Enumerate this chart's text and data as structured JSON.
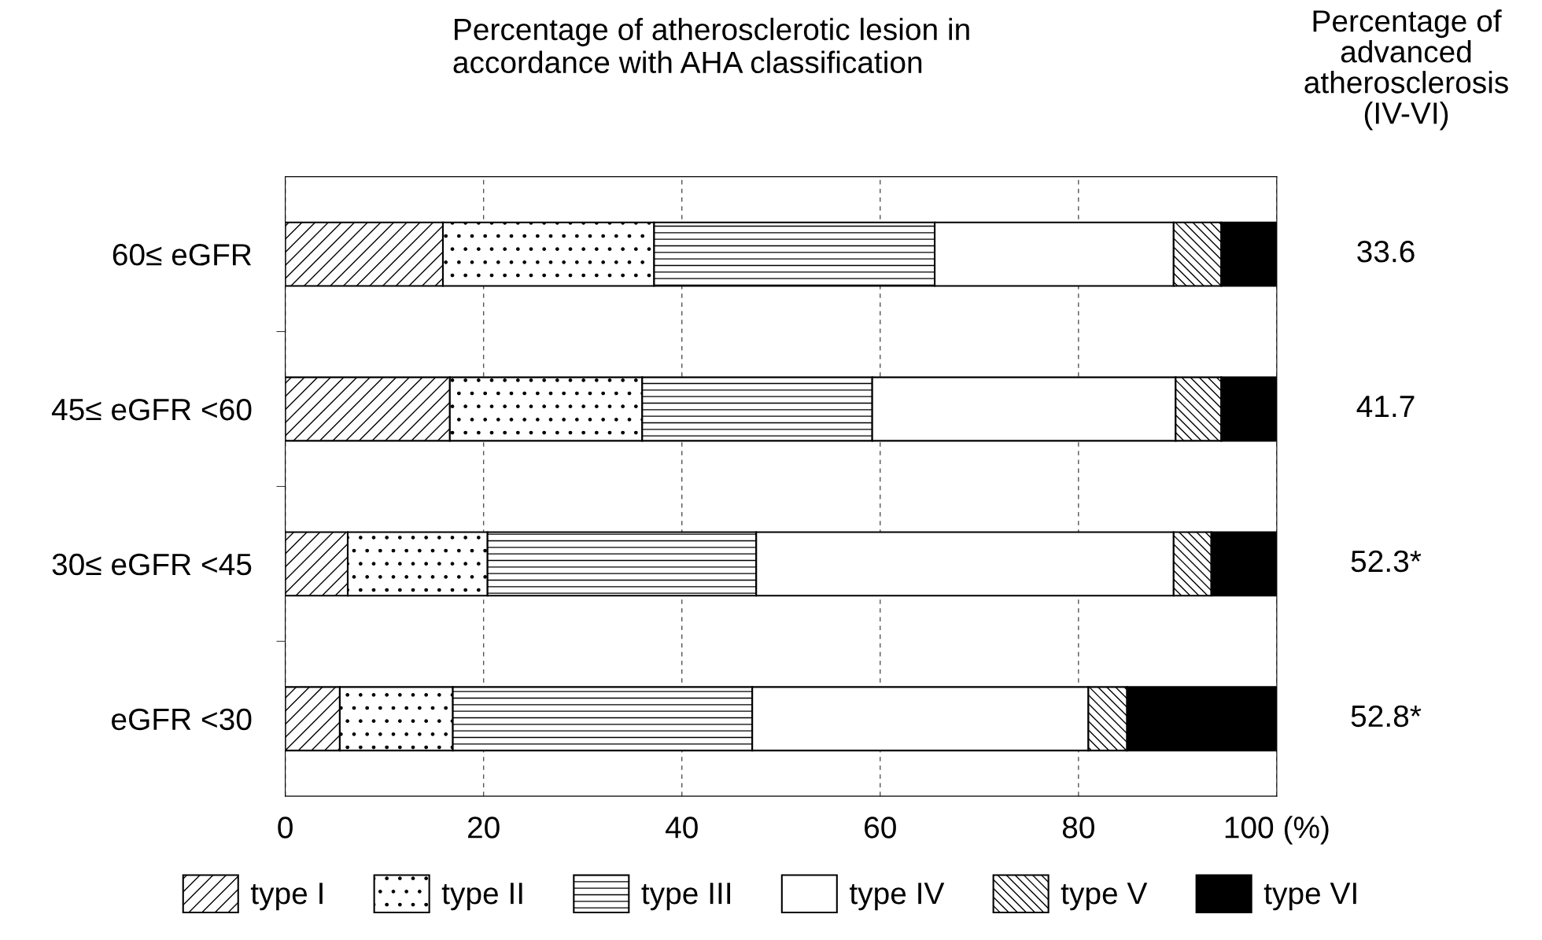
{
  "chart_data": {
    "type": "bar",
    "orientation": "horizontal",
    "stacked": true,
    "title": "Percentage of atherosclerotic lesion in\naccordance with AHA classification",
    "categories": [
      "60≤ eGFR",
      "45≤ eGFR <60",
      "30≤ eGFR <45",
      "eGFR <30"
    ],
    "series": [
      {
        "name": "type I",
        "color": "#ffffff",
        "values": [
          15.9,
          16.6,
          6.3,
          5.5
        ]
      },
      {
        "name": "type II",
        "color": "#ffffff",
        "values": [
          21.3,
          19.4,
          14.1,
          11.4
        ]
      },
      {
        "name": "type III",
        "color": "#ffffff",
        "values": [
          28.3,
          23.2,
          27.1,
          30.2
        ]
      },
      {
        "name": "type IV",
        "color": "#ffffff",
        "values": [
          24.1,
          30.6,
          42.1,
          33.9
        ]
      },
      {
        "name": "type V",
        "color": "#ffffff",
        "values": [
          4.8,
          4.6,
          3.8,
          3.9
        ]
      },
      {
        "name": "type VI",
        "color": "#000000",
        "values": [
          5.6,
          5.6,
          6.6,
          15.1
        ]
      }
    ],
    "xlim": [
      0,
      100
    ],
    "xticks": [
      0,
      20,
      40,
      60,
      {
        "value": 100,
        "label": "100 (%)"
      },
      80
    ],
    "grid": "x",
    "legend": "bottom",
    "annotations": [
      "Percentage of\nadvanced\natherosclerosis\n(IV-VI)",
      "33.6",
      "41.7",
      "52.3*",
      "52.8*"
    ]
  }
}
